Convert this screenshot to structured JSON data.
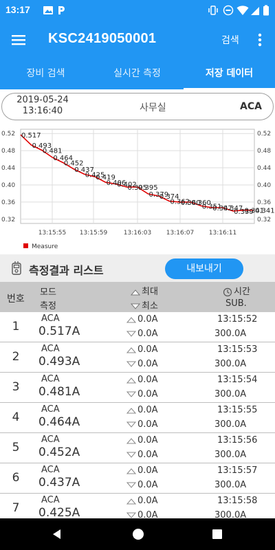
{
  "status_bar": {
    "time": "13:17"
  },
  "app_bar": {
    "title": "KSC2419050001",
    "search_label": "검색"
  },
  "tabs": [
    {
      "label": "장비 검색"
    },
    {
      "label": "실시간 측정"
    },
    {
      "label": "저장 데이터"
    }
  ],
  "info": {
    "date": "2019-05-24",
    "time": "13:16:40",
    "location": "사무실",
    "mode": "ACA"
  },
  "chart_data": {
    "type": "line",
    "ylim": [
      0.31,
      0.53
    ],
    "y_ticks": [
      "0.52",
      "0.48",
      "0.44",
      "0.40",
      "0.36",
      "0.32"
    ],
    "y_tick_values": [
      0.52,
      0.48,
      0.44,
      0.4,
      0.36,
      0.32
    ],
    "x_ticks": [
      "13:15:55",
      "13:15:59",
      "13:16:03",
      "13:16:07",
      "13:16:11"
    ],
    "legend": "Measure",
    "legend_position": "bottom-left",
    "grid": true,
    "series": [
      {
        "name": "Measure",
        "color": "#e00000",
        "values": [
          0.517,
          0.493,
          0.481,
          0.464,
          0.452,
          0.437,
          0.425,
          0.419,
          0.406,
          0.402,
          0.395,
          0.395,
          0.379,
          0.374,
          0.362,
          0.36,
          0.36,
          0.351,
          0.347,
          0.347,
          0.339,
          0.341,
          0.341
        ],
        "labels": [
          "0.517",
          "0.493",
          "0.481",
          "0.464",
          "0.452",
          "0.437",
          "0.425",
          "0.419",
          "0.406",
          "0.402",
          "0.395",
          "0.395",
          "0.379",
          "0.374",
          "0.362",
          "0.360",
          "0.360",
          "0.351",
          "0.347",
          "0.347",
          "0.339",
          "0.341",
          "0.341"
        ]
      }
    ]
  },
  "list": {
    "title": "측정결과 리스트",
    "export_label": "내보내기",
    "headers": {
      "number": "번호",
      "mode": "모드",
      "measure": "측정",
      "max": "최대",
      "min": "최소",
      "time": "시간",
      "sub": "SUB."
    },
    "rows": [
      {
        "num": "1",
        "mode": "ACA",
        "value": "0.517A",
        "max": "0.0A",
        "min": "0.0A",
        "time": "13:15:52",
        "sub": "300.0A"
      },
      {
        "num": "2",
        "mode": "ACA",
        "value": "0.493A",
        "max": "0.0A",
        "min": "0.0A",
        "time": "13:15:53",
        "sub": "300.0A"
      },
      {
        "num": "3",
        "mode": "ACA",
        "value": "0.481A",
        "max": "0.0A",
        "min": "0.0A",
        "time": "13:15:54",
        "sub": "300.0A"
      },
      {
        "num": "4",
        "mode": "ACA",
        "value": "0.464A",
        "max": "0.0A",
        "min": "0.0A",
        "time": "13:15:55",
        "sub": "300.0A"
      },
      {
        "num": "5",
        "mode": "ACA",
        "value": "0.452A",
        "max": "0.0A",
        "min": "0.0A",
        "time": "13:15:56",
        "sub": "300.0A"
      },
      {
        "num": "6",
        "mode": "ACA",
        "value": "0.437A",
        "max": "0.0A",
        "min": "0.0A",
        "time": "13:15:57",
        "sub": "300.0A"
      },
      {
        "num": "7",
        "mode": "ACA",
        "value": "0.425A",
        "max": "0.0A",
        "min": "0.0A",
        "time": "13:15:58",
        "sub": "300.0A"
      }
    ]
  },
  "colors": {
    "primary": "#2196F3",
    "series": "#e00000",
    "header_bg": "#c8c8c8"
  }
}
